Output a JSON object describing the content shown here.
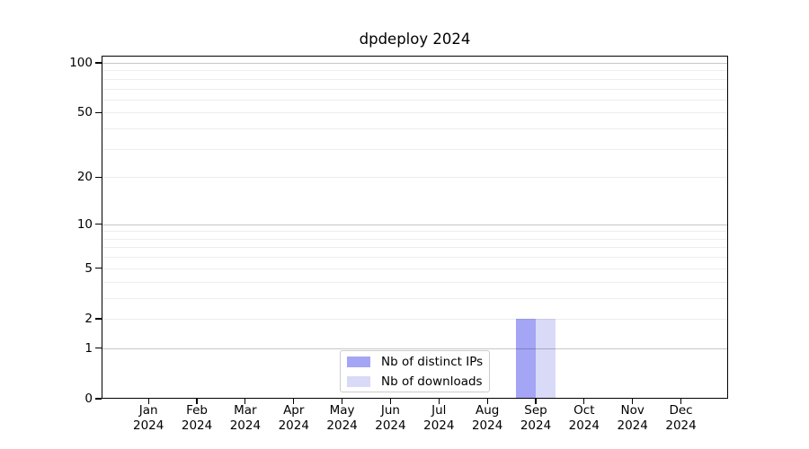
{
  "chart_data": {
    "type": "bar",
    "title": "dpdeploy 2024",
    "year_label": "2024",
    "months": [
      "Jan",
      "Feb",
      "Mar",
      "Apr",
      "May",
      "Jun",
      "Jul",
      "Aug",
      "Sep",
      "Oct",
      "Nov",
      "Dec"
    ],
    "series": [
      {
        "name": "Nb of distinct IPs",
        "color": "#a5a5f5",
        "values": [
          0,
          0,
          0,
          0,
          0,
          0,
          0,
          0,
          2,
          0,
          0,
          0
        ]
      },
      {
        "name": "Nb of downloads",
        "color": "#d9d9f8",
        "values": [
          0,
          0,
          0,
          0,
          0,
          0,
          0,
          0,
          2,
          0,
          0,
          0
        ]
      }
    ],
    "yscale": "log1p",
    "ylim": [
      0,
      110
    ],
    "yticks": [
      0,
      1,
      2,
      5,
      10,
      20,
      50,
      100
    ],
    "major_grid_values": [
      1,
      10,
      100
    ],
    "minor_grid_values": [
      2,
      3,
      4,
      5,
      6,
      7,
      8,
      9,
      20,
      30,
      40,
      50,
      60,
      70,
      80,
      90
    ],
    "grid": "horizontal",
    "legend_position": "bottom-center",
    "xlabel": "",
    "ylabel": ""
  }
}
